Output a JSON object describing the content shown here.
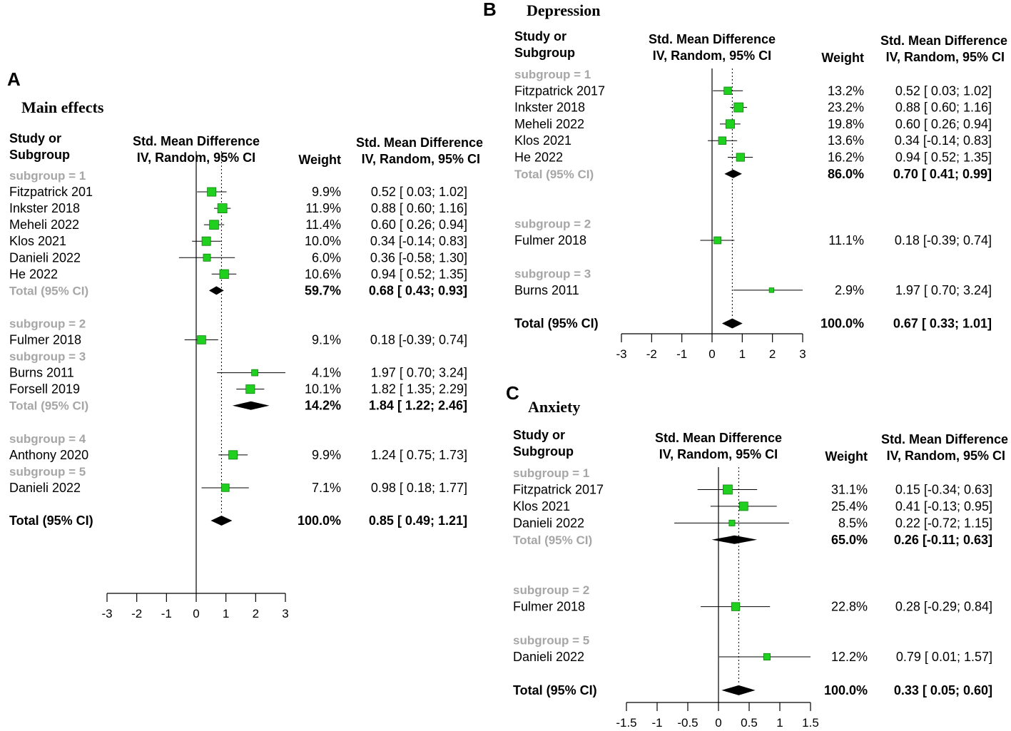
{
  "figure": {
    "tick_labels_note": "tick labels shown on each x axis",
    "header_study_line1": "Study or",
    "header_study_line2": "Subgroup",
    "header_effect_line1": "Std. Mean Difference",
    "header_effect_line2": "IV, Random, 95% CI",
    "header_weight": "Weight"
  },
  "colors": {
    "box": "#1fd01f",
    "box_border": "#0f7f0f",
    "subgroup_text": "#a6a6a6",
    "text": "#000000"
  },
  "chart_data": [
    {
      "type": "forest",
      "panel": "A",
      "title": "Main effects",
      "xlim": [
        -3,
        3
      ],
      "ticks": [
        "-3",
        "-2",
        "-1",
        "0",
        "1",
        "2",
        "3"
      ],
      "tick_values": [
        -3,
        -2,
        -1,
        0,
        1,
        2,
        3
      ],
      "overall_estimate": 0.85,
      "rows": [
        {
          "kind": "subgroup",
          "label": "subgroup = 1"
        },
        {
          "kind": "study",
          "label": "Fitzpatrick 201",
          "weight": "9.9%",
          "ci": "0.52 [ 0.03; 1.02]",
          "est": 0.52,
          "lo": 0.03,
          "hi": 1.02
        },
        {
          "kind": "study",
          "label": "Inkster 2018",
          "weight": "11.9%",
          "ci": "0.88 [ 0.60; 1.16]",
          "est": 0.88,
          "lo": 0.6,
          "hi": 1.16
        },
        {
          "kind": "study",
          "label": "Meheli 2022",
          "weight": "11.4%",
          "ci": "0.60 [ 0.26; 0.94]",
          "est": 0.6,
          "lo": 0.26,
          "hi": 0.94
        },
        {
          "kind": "study",
          "label": "Klos 2021",
          "weight": "10.0%",
          "ci": "0.34 [-0.14; 0.83]",
          "est": 0.34,
          "lo": -0.14,
          "hi": 0.83
        },
        {
          "kind": "study",
          "label": "Danieli 2022",
          "weight": "6.0%",
          "ci": "0.36 [-0.58; 1.30]",
          "est": 0.36,
          "lo": -0.58,
          "hi": 1.3
        },
        {
          "kind": "study",
          "label": "He 2022",
          "weight": "10.6%",
          "ci": "0.94 [ 0.52; 1.35]",
          "est": 0.94,
          "lo": 0.52,
          "hi": 1.35
        },
        {
          "kind": "subtotal",
          "label": "Total (95% CI)",
          "weight": "59.7%",
          "ci": "0.68 [ 0.43; 0.93]",
          "est": 0.68,
          "lo": 0.43,
          "hi": 0.93
        },
        {
          "kind": "gap"
        },
        {
          "kind": "subgroup",
          "label": "subgroup = 2"
        },
        {
          "kind": "study",
          "label": "Fulmer 2018",
          "weight": "9.1%",
          "ci": "0.18 [-0.39; 0.74]",
          "est": 0.18,
          "lo": -0.39,
          "hi": 0.74
        },
        {
          "kind": "subgroup",
          "label": "subgroup = 3"
        },
        {
          "kind": "study",
          "label": "Burns 2011",
          "weight": "4.1%",
          "ci": "1.97 [ 0.70; 3.24]",
          "est": 1.97,
          "lo": 0.7,
          "hi": 3.24
        },
        {
          "kind": "study",
          "label": "Forsell 2019",
          "weight": "10.1%",
          "ci": "1.82 [ 1.35; 2.29]",
          "est": 1.82,
          "lo": 1.35,
          "hi": 2.29
        },
        {
          "kind": "subtotal",
          "label": "Total (95% CI)",
          "weight": "14.2%",
          "ci": "1.84 [ 1.22; 2.46]",
          "est": 1.84,
          "lo": 1.22,
          "hi": 2.46
        },
        {
          "kind": "gap"
        },
        {
          "kind": "subgroup",
          "label": "subgroup = 4"
        },
        {
          "kind": "study",
          "label": "Anthony 2020",
          "weight": "9.9%",
          "ci": "1.24 [ 0.75; 1.73]",
          "est": 1.24,
          "lo": 0.75,
          "hi": 1.73
        },
        {
          "kind": "subgroup",
          "label": "subgroup = 5"
        },
        {
          "kind": "study",
          "label": "Danieli 2022",
          "weight": "7.1%",
          "ci": "0.98 [ 0.18; 1.77]",
          "est": 0.98,
          "lo": 0.18,
          "hi": 1.77
        },
        {
          "kind": "gap"
        },
        {
          "kind": "total",
          "label": "Total (95% CI)",
          "weight": "100.0%",
          "ci": "0.85 [ 0.49; 1.21]",
          "est": 0.85,
          "lo": 0.49,
          "hi": 1.21
        }
      ]
    },
    {
      "type": "forest",
      "panel": "B",
      "title": "Depression",
      "xlim": [
        -3,
        3
      ],
      "ticks": [
        "-3",
        "-2",
        "-1",
        "0",
        "1",
        "2",
        "3"
      ],
      "tick_values": [
        -3,
        -2,
        -1,
        0,
        1,
        2,
        3
      ],
      "overall_estimate": 0.67,
      "rows": [
        {
          "kind": "subgroup",
          "label": "subgroup = 1"
        },
        {
          "kind": "study",
          "label": "Fitzpatrick 2017",
          "weight": "13.2%",
          "ci": "0.52 [ 0.03; 1.02]",
          "est": 0.52,
          "lo": 0.03,
          "hi": 1.02
        },
        {
          "kind": "study",
          "label": "Inkster 2018",
          "weight": "23.2%",
          "ci": "0.88 [ 0.60; 1.16]",
          "est": 0.88,
          "lo": 0.6,
          "hi": 1.16
        },
        {
          "kind": "study",
          "label": "Meheli 2022",
          "weight": "19.8%",
          "ci": "0.60 [ 0.26; 0.94]",
          "est": 0.6,
          "lo": 0.26,
          "hi": 0.94
        },
        {
          "kind": "study",
          "label": "Klos 2021",
          "weight": "13.6%",
          "ci": "0.34 [-0.14; 0.83]",
          "est": 0.34,
          "lo": -0.14,
          "hi": 0.83
        },
        {
          "kind": "study",
          "label": "He 2022",
          "weight": "16.2%",
          "ci": "0.94 [ 0.52; 1.35]",
          "est": 0.94,
          "lo": 0.52,
          "hi": 1.35
        },
        {
          "kind": "subtotal",
          "label": "Total (95% CI)",
          "weight": "86.0%",
          "ci": "0.70 [ 0.41; 0.99]",
          "est": 0.7,
          "lo": 0.41,
          "hi": 0.99
        },
        {
          "kind": "gap"
        },
        {
          "kind": "gap"
        },
        {
          "kind": "subgroup",
          "label": "subgroup = 2"
        },
        {
          "kind": "study",
          "label": "Fulmer 2018",
          "weight": "11.1%",
          "ci": "0.18 [-0.39; 0.74]",
          "est": 0.18,
          "lo": -0.39,
          "hi": 0.74
        },
        {
          "kind": "gap"
        },
        {
          "kind": "subgroup",
          "label": "subgroup = 3"
        },
        {
          "kind": "study",
          "label": "Burns 2011",
          "weight": "2.9%",
          "ci": "1.97 [ 0.70; 3.24]",
          "est": 1.97,
          "lo": 0.7,
          "hi": 3.24
        },
        {
          "kind": "gap"
        },
        {
          "kind": "total",
          "label": "Total (95% CI)",
          "weight": "100.0%",
          "ci": "0.67 [ 0.33; 1.01]",
          "est": 0.67,
          "lo": 0.33,
          "hi": 1.01
        }
      ]
    },
    {
      "type": "forest",
      "panel": "C",
      "title": "Anxiety",
      "xlim": [
        -1.5,
        1.5
      ],
      "ticks": [
        "-1.5",
        "-1",
        "-0.5",
        "0",
        "0.5",
        "1",
        "1.5"
      ],
      "tick_values": [
        -1.5,
        -1,
        -0.5,
        0,
        0.5,
        1,
        1.5
      ],
      "overall_estimate": 0.33,
      "rows": [
        {
          "kind": "subgroup",
          "label": "subgroup = 1"
        },
        {
          "kind": "study",
          "label": "Fitzpatrick 2017",
          "weight": "31.1%",
          "ci": "0.15 [-0.34; 0.63]",
          "est": 0.15,
          "lo": -0.34,
          "hi": 0.63
        },
        {
          "kind": "study",
          "label": "Klos 2021",
          "weight": "25.4%",
          "ci": "0.41 [-0.13; 0.95]",
          "est": 0.41,
          "lo": -0.13,
          "hi": 0.95
        },
        {
          "kind": "study",
          "label": "Danieli 2022",
          "weight": "8.5%",
          "ci": "0.22 [-0.72; 1.15]",
          "est": 0.22,
          "lo": -0.72,
          "hi": 1.15
        },
        {
          "kind": "subtotal",
          "label": "Total (95% CI)",
          "weight": "65.0%",
          "ci": "0.26 [-0.11; 0.63]",
          "est": 0.26,
          "lo": -0.11,
          "hi": 0.63
        },
        {
          "kind": "gap"
        },
        {
          "kind": "gap"
        },
        {
          "kind": "subgroup",
          "label": "subgroup = 2"
        },
        {
          "kind": "study",
          "label": "Fulmer 2018",
          "weight": "22.8%",
          "ci": "0.28 [-0.29; 0.84]",
          "est": 0.28,
          "lo": -0.29,
          "hi": 0.84
        },
        {
          "kind": "gap"
        },
        {
          "kind": "subgroup",
          "label": "subgroup = 5"
        },
        {
          "kind": "study",
          "label": "Danieli 2022",
          "weight": "12.2%",
          "ci": "0.79 [ 0.01; 1.57]",
          "est": 0.79,
          "lo": 0.01,
          "hi": 1.57
        },
        {
          "kind": "gap"
        },
        {
          "kind": "total",
          "label": "Total (95% CI)",
          "weight": "100.0%",
          "ci": "0.33 [ 0.05; 0.60]",
          "est": 0.33,
          "lo": 0.05,
          "hi": 0.6
        }
      ]
    }
  ]
}
